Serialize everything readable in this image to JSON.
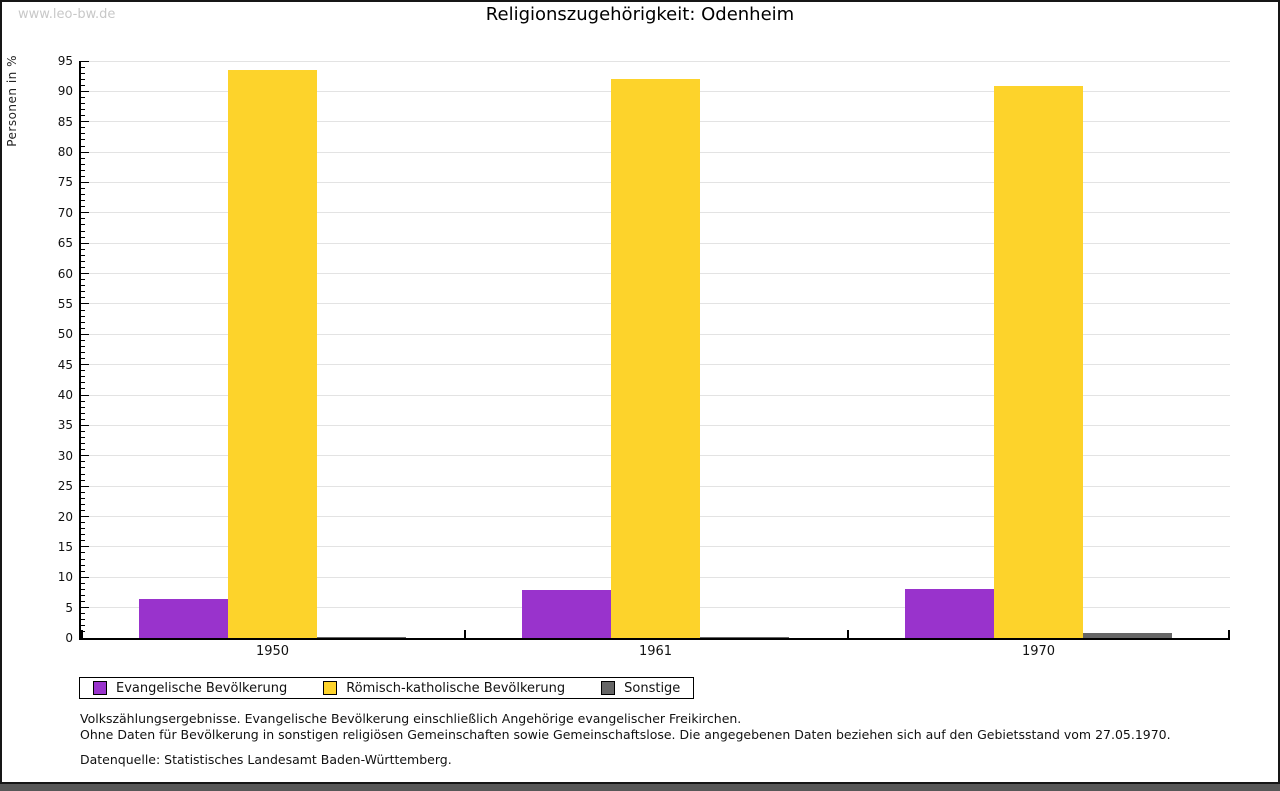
{
  "watermark": "www.leo-bw.de",
  "chart_data": {
    "type": "bar",
    "title": "Religionszugehörigkeit: Odenheim",
    "ylabel": "Personen in %",
    "xlabel": "",
    "categories": [
      "1950",
      "1961",
      "1970"
    ],
    "series": [
      {
        "name": "Evangelische Bevölkerung",
        "color": "#9933cc",
        "values": [
          6.4,
          7.9,
          8.1
        ]
      },
      {
        "name": "Römisch-katholische Bevölkerung",
        "color": "#fdd32b",
        "values": [
          93.5,
          92.0,
          90.9
        ]
      },
      {
        "name": "Sonstige",
        "color": "#666666",
        "values": [
          0.1,
          0.2,
          0.8
        ]
      }
    ],
    "ylim": [
      0,
      95
    ],
    "ytick_step": 5,
    "minor_tick_step": 1,
    "grid": true,
    "legend_position": "bottom"
  },
  "footer": {
    "line1": "Volkszählungsergebnisse. Evangelische Bevölkerung einschließlich Angehörige evangelischer Freikirchen.",
    "line2": "Ohne Daten für Bevölkerung in sonstigen religiösen Gemeinschaften sowie Gemeinschaftslose. Die angegebenen Daten beziehen sich auf den Gebietsstand vom 27.05.1970.",
    "source": "Datenquelle: Statistisches Landesamt Baden-Württemberg."
  }
}
